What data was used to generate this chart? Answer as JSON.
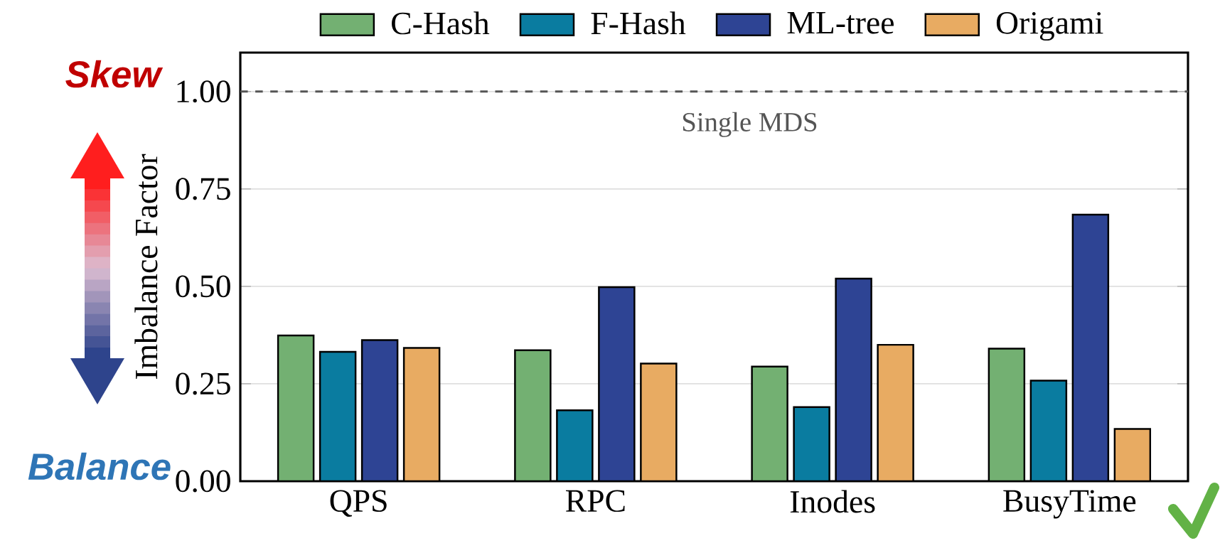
{
  "chart_data": {
    "type": "bar",
    "categories": [
      "QPS",
      "RPC",
      "Inodes",
      "BusyTime"
    ],
    "ylabel": "Imbalance Factor",
    "series": [
      {
        "name": "C-Hash",
        "color": "#73b072",
        "values": [
          0.374,
          0.336,
          0.294,
          0.34
        ]
      },
      {
        "name": "F-Hash",
        "color": "#0a7ca0",
        "values": [
          0.332,
          0.182,
          0.19,
          0.258
        ]
      },
      {
        "name": "ML-tree",
        "color": "#2e4494",
        "values": [
          0.362,
          0.498,
          0.52,
          0.684
        ]
      },
      {
        "name": "Origami",
        "color": "#e8ab62",
        "values": [
          0.342,
          0.302,
          0.35,
          0.134
        ]
      }
    ],
    "ylim": [
      0,
      1.1
    ],
    "yticks": [
      {
        "value": 0,
        "label": "0.00"
      },
      {
        "value": 0.25,
        "label": "0.25"
      },
      {
        "value": 0.5,
        "label": "0.50"
      },
      {
        "value": 0.75,
        "label": "0.75"
      },
      {
        "value": 1,
        "label": "1.00"
      }
    ],
    "grid": "y",
    "legend": "top",
    "ref_lines": [
      {
        "axis": "y",
        "value": 1,
        "label": "Single MDS",
        "color": "#555555",
        "line_style": "dashed"
      }
    ],
    "annotations": [
      "Skew",
      "Balance"
    ]
  }
}
